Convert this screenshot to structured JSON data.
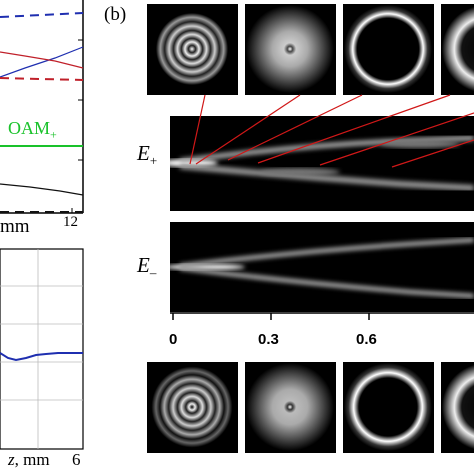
{
  "left_top_plot": {
    "label_oam": "OAM",
    "label_oam_sub": "+",
    "xaxis_unit": "mm",
    "xaxis_tick": "12",
    "colors": {
      "blue": "#1f2fb0",
      "red": "#c0202a",
      "green": "#19c22a",
      "black": "#111111"
    }
  },
  "left_bottom_plot": {
    "xaxis_var": "z",
    "xaxis_unit": ", mm",
    "xaxis_tick": "6"
  },
  "panel_b": {
    "label": "(b)",
    "field_plus": "E",
    "field_plus_sub": "+",
    "field_minus": "E",
    "field_minus_sub": "–",
    "axis_ticks": [
      "0",
      "0.3",
      "0.6"
    ]
  },
  "icons": {
    "thumbnails_top": [
      "multi-ring-icon",
      "soft-ring-dot-icon",
      "single-ring-icon",
      "wide-ring-icon"
    ],
    "thumbnails_bottom": [
      "multi-ring-icon",
      "soft-ring-dot-icon",
      "single-ring-icon",
      "wide-ring-icon"
    ]
  }
}
